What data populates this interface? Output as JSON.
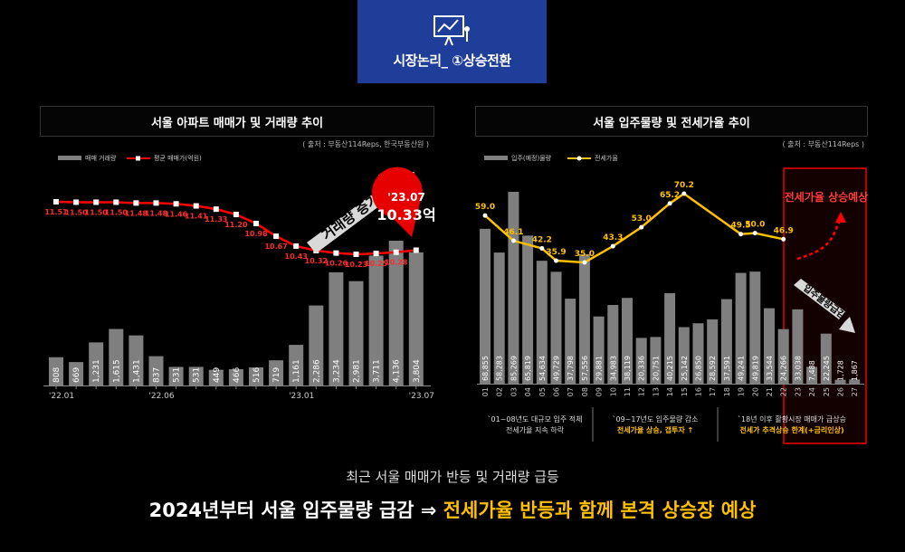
{
  "header": {
    "title": "시장논리_ ①상승전환",
    "icon": "presentation-chart-icon"
  },
  "left_panel": {
    "title": "서울 아파트 매매가 및 거래량 추이",
    "source": "( 출처 : 부동산114Reps, 한국부동산원 )",
    "annotation_arrow": "거래량 증가세",
    "callout_date": "'23.07",
    "callout_value": "10.33억"
  },
  "right_panel": {
    "title": "서울 입주물량 및 전세가율 추이",
    "source": "( 출처 : 부동산114Reps )",
    "annotation_up": "전세가율 상승예상",
    "annotation_down": "입주물량급감",
    "notes": [
      {
        "line1": "`01~08년도 대규모 입주 적체",
        "line2": "전세가율 지속 하락"
      },
      {
        "line1": "`09~17년도 입주물량 감소",
        "line2": "전세가율 상승, 갭투자 ↑"
      },
      {
        "line1": "`18년 이후 활황시장 매매가 급상승",
        "line2": "전세가 추격상승 한계(+금리인상)"
      }
    ]
  },
  "bottom": {
    "line1": "최근 서울 매매가 반등 및 거래량 급등",
    "line2_white": "2024년부터 서울 입주물량 급감 ⇒ ",
    "line2_yellow": "전세가율 반등과 함께 본격 상승장 예상"
  },
  "colors": {
    "bar": "#7f7f7f",
    "red": "#ff0000",
    "yellow": "#ffc000",
    "header_bg": "#1f3e99"
  },
  "chart_data": [
    {
      "type": "bar",
      "categories": [
        "'22.01",
        "",
        "",
        "",
        "",
        "'22.06",
        "",
        "",
        "",
        "",
        "",
        "",
        "'23.01",
        "",
        "",
        "",
        "",
        "",
        "'23.07"
      ],
      "series": [
        {
          "name": "매매 거래량",
          "type": "bar",
          "values": [
            808,
            669,
            1231,
            1615,
            1431,
            837,
            531,
            531,
            449,
            466,
            516,
            719,
            1161,
            2286,
            3234,
            2981,
            3711,
            4136,
            3804
          ]
        },
        {
          "name": "평균 매매가(억원)",
          "type": "line",
          "values": [
            11.51,
            11.5,
            11.5,
            11.5,
            11.48,
            11.48,
            11.46,
            11.41,
            11.33,
            11.2,
            10.98,
            10.67,
            10.43,
            10.32,
            10.26,
            10.23,
            10.25,
            10.28,
            10.33
          ]
        }
      ],
      "labels": [
        "808",
        "669",
        "1,231",
        "1,615",
        "1,431",
        "837",
        "531",
        "531",
        "449",
        "466",
        "516",
        "719",
        "1,161",
        "2,286",
        "3,234",
        "2,981",
        "3,711",
        "4,136",
        "3,804"
      ],
      "line_labels": [
        "11.51",
        "11.50",
        "11.50",
        "11.50",
        "11.48",
        "11.48",
        "11.46",
        "11.41",
        "11.33",
        "11.20",
        "10.98",
        "10.67",
        "10.43",
        "10.32",
        "10.26",
        "10.23",
        "10.25",
        "10.28",
        ""
      ]
    },
    {
      "type": "bar",
      "categories": [
        "01",
        "02",
        "03",
        "04",
        "05",
        "06",
        "07",
        "08",
        "09",
        "10",
        "11",
        "12",
        "13",
        "14",
        "15",
        "16",
        "17",
        "18",
        "19",
        "20",
        "21",
        "22",
        "23",
        "24",
        "25",
        "26",
        "27"
      ],
      "series": [
        {
          "name": "입주(예정)물량",
          "type": "bar",
          "values": [
            68855,
            58283,
            85269,
            65819,
            54634,
            49729,
            37798,
            57556,
            29881,
            34983,
            38119,
            20336,
            20751,
            40215,
            25142,
            26850,
            28592,
            37591,
            49241,
            49819,
            33544,
            24266,
            33038,
            7488,
            22245,
            1728,
            1867
          ]
        },
        {
          "name": "전세가율",
          "type": "line",
          "values": [
            59.0,
            null,
            46.1,
            null,
            42.2,
            35.9,
            null,
            35.0,
            null,
            43.3,
            null,
            53.0,
            null,
            65.2,
            70.2,
            null,
            null,
            null,
            49.5,
            50.0,
            null,
            46.9,
            null,
            null,
            null,
            null,
            null
          ]
        }
      ],
      "labels": [
        "68,855",
        "58,283",
        "85,269",
        "65,819",
        "54,634",
        "49,729",
        "37,798",
        "57,556",
        "29,881",
        "34,983",
        "38,119",
        "20,336",
        "20,751",
        "40,215",
        "25,142",
        "26,850",
        "28,592",
        "37,591",
        "49,241",
        "49,819",
        "33,544",
        "24,266",
        "33,038",
        "7,488",
        "22,245",
        "1,728",
        "1,867"
      ]
    }
  ]
}
